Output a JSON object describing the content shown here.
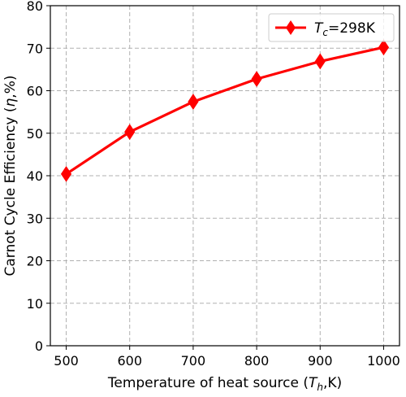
{
  "chart_data": {
    "type": "line",
    "title": "",
    "xlabel": "Temperature of heat source (",
    "xlabel_symbol": "T",
    "xlabel_sub": "h",
    "xlabel_tail": ",K)",
    "ylabel": "Carnot Cycle Efficiency (",
    "ylabel_symbol": "η",
    "ylabel_tail": ",%)",
    "x": [
      500,
      600,
      700,
      800,
      900,
      1000
    ],
    "series": [
      {
        "name": "T_c=298K",
        "legend_symbol": "T",
        "legend_sub": "c",
        "legend_tail": "=298K",
        "values": [
          40.4,
          50.3,
          57.4,
          62.75,
          66.9,
          70.2
        ],
        "color": "#ff0000",
        "marker": "diamond"
      }
    ],
    "xlim": [
      475,
      1025
    ],
    "ylim": [
      0,
      80
    ],
    "xticks": [
      500,
      600,
      700,
      800,
      900,
      1000
    ],
    "yticks": [
      0,
      10,
      20,
      30,
      40,
      50,
      60,
      70,
      80
    ],
    "grid": true,
    "grid_color": "#b0b0b0",
    "legend_position": "top-right"
  }
}
